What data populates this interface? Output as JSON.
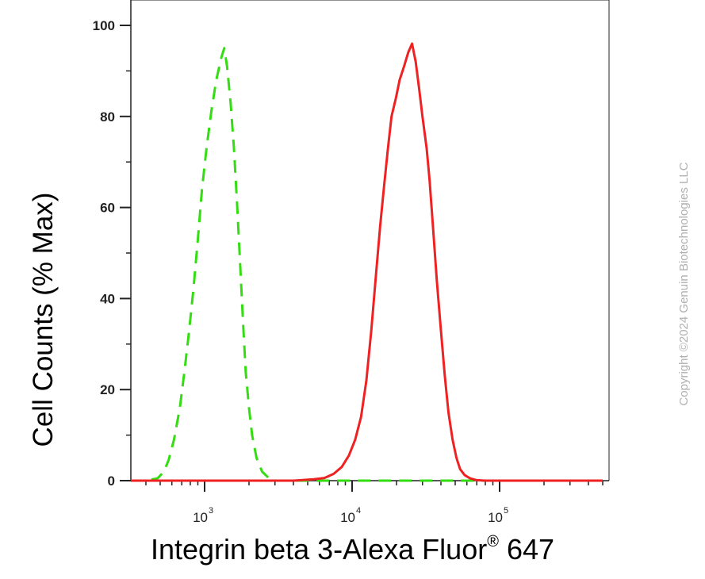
{
  "copyright": "Copyright ©2024 Genuin Biotechnologies LLC",
  "chart_data": {
    "type": "line",
    "xlabel_main": "Integrin beta 3-Alexa Fluor",
    "xlabel_reg": "®",
    "xlabel_tail": " 647",
    "ylabel": "Cell Counts (% Max)",
    "x_scale": "log",
    "xlim": [
      300,
      500000
    ],
    "ylim": [
      0,
      105
    ],
    "y_ticks": [
      {
        "value": 0,
        "label": "0"
      },
      {
        "value": 20,
        "label": "20"
      },
      {
        "value": 40,
        "label": "40"
      },
      {
        "value": 60,
        "label": "60"
      },
      {
        "value": 80,
        "label": "80"
      },
      {
        "value": 100,
        "label": "100"
      }
    ],
    "x_ticks": [
      {
        "value": 1000,
        "base": "10",
        "exp": "3"
      },
      {
        "value": 10000,
        "base": "10",
        "exp": "4"
      },
      {
        "value": 100000,
        "base": "10",
        "exp": "5"
      }
    ],
    "grid": false,
    "series": [
      {
        "color": "#33dd11",
        "style": "dashed",
        "points": [
          [
            300,
            0
          ],
          [
            400,
            0
          ],
          [
            480,
            0.5
          ],
          [
            530,
            2
          ],
          [
            570,
            4.5
          ],
          [
            620,
            9
          ],
          [
            680,
            16
          ],
          [
            730,
            24
          ],
          [
            780,
            32
          ],
          [
            840,
            42
          ],
          [
            900,
            53
          ],
          [
            960,
            64
          ],
          [
            1030,
            73
          ],
          [
            1110,
            81
          ],
          [
            1200,
            88
          ],
          [
            1300,
            93
          ],
          [
            1360,
            95
          ],
          [
            1420,
            91
          ],
          [
            1500,
            83
          ],
          [
            1580,
            73
          ],
          [
            1660,
            61
          ],
          [
            1740,
            48
          ],
          [
            1820,
            35
          ],
          [
            1900,
            24
          ],
          [
            2000,
            16
          ],
          [
            2100,
            10
          ],
          [
            2250,
            5
          ],
          [
            2450,
            2
          ],
          [
            2700,
            0.7
          ],
          [
            3000,
            0
          ],
          [
            8000,
            0
          ],
          [
            10000,
            0
          ],
          [
            20000,
            0
          ],
          [
            30000,
            0
          ],
          [
            40000,
            0
          ],
          [
            55000,
            0
          ],
          [
            70000,
            0
          ],
          [
            100000,
            0
          ],
          [
            500000,
            0
          ]
        ]
      },
      {
        "color": "#ee2222",
        "style": "solid",
        "points": [
          [
            300,
            0
          ],
          [
            4000,
            0
          ],
          [
            5500,
            0.3
          ],
          [
            6500,
            0.6
          ],
          [
            7500,
            1.5
          ],
          [
            8500,
            3
          ],
          [
            9500,
            5.5
          ],
          [
            10500,
            9
          ],
          [
            11500,
            14
          ],
          [
            12500,
            22
          ],
          [
            13500,
            33
          ],
          [
            14500,
            45
          ],
          [
            15500,
            56
          ],
          [
            16500,
            65
          ],
          [
            17500,
            73
          ],
          [
            18500,
            80
          ],
          [
            19800,
            84
          ],
          [
            21000,
            88
          ],
          [
            22500,
            91
          ],
          [
            24000,
            94
          ],
          [
            25500,
            96
          ],
          [
            27000,
            92
          ],
          [
            28500,
            86
          ],
          [
            30000,
            80
          ],
          [
            32000,
            73
          ],
          [
            33500,
            66
          ],
          [
            35500,
            55
          ],
          [
            37500,
            44
          ],
          [
            40000,
            33
          ],
          [
            42500,
            23
          ],
          [
            45000,
            15
          ],
          [
            48000,
            9
          ],
          [
            51000,
            5
          ],
          [
            54000,
            2.5
          ],
          [
            58000,
            1.2
          ],
          [
            63000,
            0.5
          ],
          [
            70000,
            0.1
          ],
          [
            80000,
            0
          ],
          [
            500000,
            0
          ]
        ]
      }
    ]
  }
}
